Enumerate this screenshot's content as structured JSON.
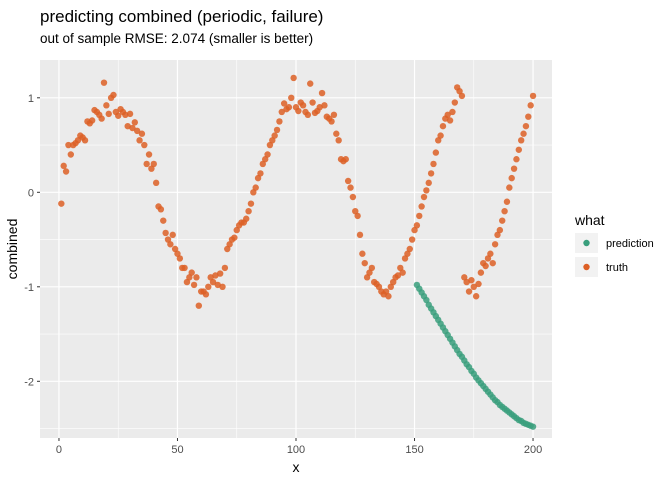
{
  "chart_data": {
    "type": "scatter",
    "title": "predicting combined (periodic, failure)",
    "subtitle": "out of sample RMSE: 2.074 (smaller is better)",
    "xlabel": "x",
    "ylabel": "combined",
    "xlim": [
      -8,
      208
    ],
    "ylim": [
      -2.6,
      1.4
    ],
    "x_ticks": [
      0,
      50,
      100,
      150,
      200
    ],
    "y_ticks": [
      -2,
      -1,
      0,
      1
    ],
    "x_tick_labels": [
      "0",
      "50",
      "100",
      "150",
      "200"
    ],
    "y_tick_labels": [
      "-2",
      "-1",
      "0",
      "1"
    ],
    "grid": true,
    "legend": {
      "title": "what",
      "position": "right",
      "entries": [
        "prediction",
        "truth"
      ]
    },
    "colors": {
      "prediction": "#3a9f7d",
      "truth": "#dd6026",
      "panel": "#ebebeb",
      "grid": "#ffffff"
    },
    "series": [
      {
        "name": "truth",
        "x": [
          1,
          2,
          3,
          4,
          5,
          6,
          7,
          8,
          9,
          10,
          11,
          12,
          13,
          14,
          15,
          16,
          17,
          18,
          19,
          20,
          21,
          22,
          23,
          24,
          25,
          26,
          27,
          28,
          29,
          30,
          31,
          32,
          33,
          34,
          35,
          36,
          37,
          38,
          39,
          40,
          41,
          42,
          43,
          44,
          45,
          46,
          47,
          48,
          49,
          50,
          51,
          52,
          53,
          54,
          55,
          56,
          57,
          58,
          59,
          60,
          61,
          62,
          63,
          64,
          65,
          66,
          67,
          68,
          69,
          70,
          71,
          72,
          73,
          74,
          75,
          76,
          77,
          78,
          79,
          80,
          81,
          82,
          83,
          84,
          85,
          86,
          87,
          88,
          89,
          90,
          91,
          92,
          93,
          94,
          95,
          96,
          97,
          98,
          99,
          100,
          101,
          102,
          103,
          104,
          105,
          106,
          107,
          108,
          109,
          110,
          111,
          112,
          113,
          114,
          115,
          116,
          117,
          118,
          119,
          120,
          121,
          122,
          123,
          124,
          125,
          126,
          127,
          128,
          129,
          130,
          131,
          132,
          133,
          134,
          135,
          136,
          137,
          138,
          139,
          140,
          141,
          142,
          143,
          144,
          145,
          146,
          147,
          148,
          149,
          150,
          151,
          152,
          153,
          154,
          155,
          156,
          157,
          158,
          159,
          160,
          161,
          162,
          163,
          164,
          165,
          166,
          167,
          168,
          169,
          170,
          171,
          172,
          173,
          174,
          175,
          176,
          177,
          178,
          179,
          180,
          181,
          182,
          183,
          184,
          185,
          186,
          187,
          188,
          189,
          190,
          191,
          192,
          193,
          194,
          195,
          196,
          197,
          198,
          199,
          200
        ],
        "y": [
          -0.12,
          0.28,
          0.22,
          0.5,
          0.4,
          0.5,
          0.52,
          0.55,
          0.6,
          0.58,
          0.55,
          0.75,
          0.73,
          0.76,
          0.87,
          0.85,
          0.82,
          0.78,
          1.16,
          0.92,
          0.83,
          1.0,
          1.03,
          0.85,
          0.81,
          0.88,
          0.85,
          0.82,
          0.7,
          0.83,
          0.68,
          0.74,
          0.65,
          0.55,
          0.62,
          0.5,
          0.3,
          0.4,
          0.25,
          0.3,
          0.1,
          -0.15,
          -0.18,
          -0.3,
          -0.43,
          -0.5,
          -0.55,
          -0.45,
          -0.6,
          -0.65,
          -0.7,
          -0.8,
          -0.8,
          -0.95,
          -0.9,
          -0.85,
          -0.98,
          -0.9,
          -1.2,
          -1.05,
          -1.05,
          -1.08,
          -1.0,
          -0.9,
          -0.95,
          -0.88,
          -0.98,
          -0.86,
          -1.0,
          -0.8,
          -0.6,
          -0.55,
          -0.5,
          -0.48,
          -0.4,
          -0.35,
          -0.32,
          -0.32,
          -0.28,
          -0.2,
          -0.12,
          0.0,
          0.05,
          0.15,
          0.2,
          0.3,
          0.35,
          0.4,
          0.5,
          0.55,
          0.6,
          0.66,
          0.75,
          0.85,
          0.94,
          0.88,
          0.9,
          1.0,
          1.21,
          0.9,
          0.86,
          0.95,
          0.92,
          0.85,
          0.82,
          1.15,
          0.95,
          0.84,
          0.86,
          0.9,
          1.05,
          0.92,
          0.8,
          0.78,
          0.75,
          0.82,
          0.62,
          0.55,
          0.35,
          0.33,
          0.35,
          0.12,
          0.05,
          -0.05,
          -0.2,
          -0.25,
          -0.45,
          -0.65,
          -0.75,
          -0.9,
          -0.85,
          -0.8,
          -0.95,
          -0.97,
          -1.0,
          -1.05,
          -1.08,
          -1.05,
          -1.1,
          -1.0,
          -0.95,
          -0.9,
          -0.88,
          -0.8,
          -0.85,
          -0.7,
          -0.65,
          -0.6,
          -0.5,
          -0.4,
          -0.35,
          -0.25,
          -0.15,
          -0.05,
          0.02,
          0.1,
          0.2,
          0.3,
          0.42,
          0.55,
          0.6,
          0.7,
          0.78,
          0.82,
          0.76,
          0.85,
          0.95,
          1.11,
          1.07,
          1.02,
          -0.9,
          -0.95,
          -1.05,
          -0.93,
          -1.0,
          -1.1,
          -0.97,
          -0.85,
          -0.75,
          -0.78,
          -0.7,
          -0.65,
          -0.75,
          -0.55,
          -0.45,
          -0.4,
          -0.3,
          -0.2,
          -0.1,
          0.05,
          0.15,
          0.25,
          0.35,
          0.45,
          0.55,
          0.62,
          0.7,
          0.8,
          0.92,
          1.02
        ]
      },
      {
        "name": "prediction",
        "x": [
          151,
          152,
          153,
          154,
          155,
          156,
          157,
          158,
          159,
          160,
          161,
          162,
          163,
          164,
          165,
          166,
          167,
          168,
          169,
          170,
          171,
          172,
          173,
          174,
          175,
          176,
          177,
          178,
          179,
          180,
          181,
          182,
          183,
          184,
          185,
          186,
          187,
          188,
          189,
          190,
          191,
          192,
          193,
          194,
          195,
          196,
          197,
          198,
          199,
          200
        ],
        "y": [
          -0.98,
          -1.02,
          -1.06,
          -1.1,
          -1.14,
          -1.19,
          -1.23,
          -1.27,
          -1.31,
          -1.35,
          -1.39,
          -1.43,
          -1.47,
          -1.51,
          -1.55,
          -1.59,
          -1.63,
          -1.67,
          -1.71,
          -1.74,
          -1.78,
          -1.82,
          -1.85,
          -1.89,
          -1.92,
          -1.96,
          -1.99,
          -2.02,
          -2.05,
          -2.08,
          -2.11,
          -2.14,
          -2.17,
          -2.2,
          -2.22,
          -2.25,
          -2.27,
          -2.29,
          -2.31,
          -2.33,
          -2.35,
          -2.37,
          -2.39,
          -2.41,
          -2.42,
          -2.44,
          -2.45,
          -2.46,
          -2.47,
          -2.48
        ]
      }
    ]
  }
}
